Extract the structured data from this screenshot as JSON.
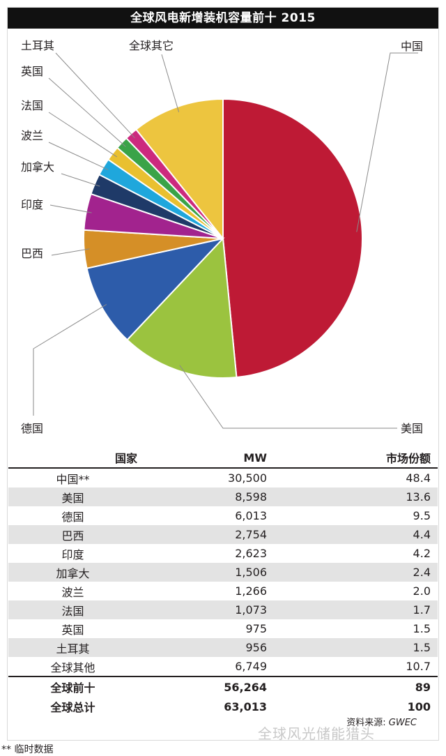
{
  "chart_data": {
    "type": "pie",
    "title": "全球风电新增装机容量前十 2015",
    "slices": [
      {
        "label": "中国",
        "value": 48.4,
        "color": "#be1a35"
      },
      {
        "label": "美国",
        "value": 13.6,
        "color": "#9bc33f"
      },
      {
        "label": "德国",
        "value": 9.5,
        "color": "#2d5caa"
      },
      {
        "label": "巴西",
        "value": 4.4,
        "color": "#d58f27"
      },
      {
        "label": "印度",
        "value": 4.2,
        "color": "#a2238e"
      },
      {
        "label": "加拿大",
        "value": 2.4,
        "color": "#1f3a68"
      },
      {
        "label": "波兰",
        "value": 2.0,
        "color": "#1fa7dc"
      },
      {
        "label": "法国",
        "value": 1.7,
        "color": "#e9c030"
      },
      {
        "label": "英国",
        "value": 1.5,
        "color": "#3aa348"
      },
      {
        "label": "土耳其",
        "value": 1.5,
        "color": "#cc2a7e"
      },
      {
        "label": "全球其它",
        "value": 10.7,
        "color": "#edc53f"
      }
    ]
  },
  "table": {
    "headers": [
      "国家",
      "MW",
      "市场份额"
    ],
    "rows": [
      {
        "country": "中国**",
        "mw": "30,500",
        "share": "48.4"
      },
      {
        "country": "美国",
        "mw": "8,598",
        "share": "13.6"
      },
      {
        "country": "德国",
        "mw": "6,013",
        "share": "9.5"
      },
      {
        "country": "巴西",
        "mw": "2,754",
        "share": "4.4"
      },
      {
        "country": "印度",
        "mw": "2,623",
        "share": "4.2"
      },
      {
        "country": "加拿大",
        "mw": "1,506",
        "share": "2.4"
      },
      {
        "country": "波兰",
        "mw": "1,266",
        "share": "2.0"
      },
      {
        "country": "法国",
        "mw": "1,073",
        "share": "1.7"
      },
      {
        "country": "英国",
        "mw": "975",
        "share": "1.5"
      },
      {
        "country": "土耳其",
        "mw": "956",
        "share": "1.5"
      },
      {
        "country": "全球其他",
        "mw": "6,749",
        "share": "10.7"
      }
    ],
    "totals": [
      {
        "label": "全球前十",
        "mw": "56,264",
        "share": "89"
      },
      {
        "label": "全球总计",
        "mw": "63,013",
        "share": "100"
      }
    ]
  },
  "source_label": "资料来源:",
  "source_name": "GWEC",
  "watermark": "全球风光储能猎头",
  "footnote": "** 临时数据"
}
